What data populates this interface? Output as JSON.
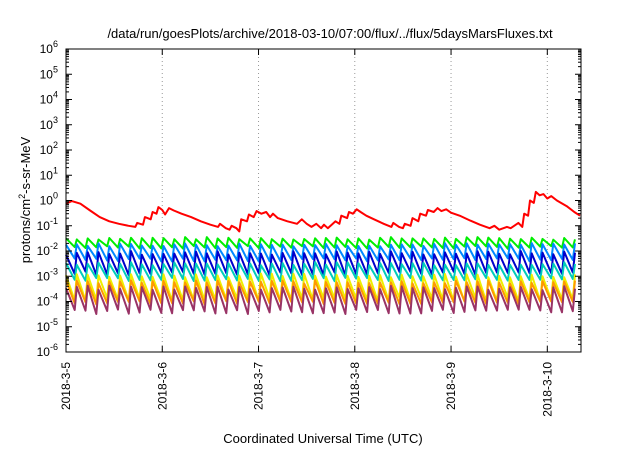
{
  "chart_data": {
    "type": "line",
    "title": "/data/run/goesPlots/archive/2018-03-10/07:00/flux/../flux/5daysMarsFluxes.txt",
    "xlabel": "Coordinated Universal Time (UTC)",
    "ylabel_parts": {
      "pre": "protons/cm",
      "sup": "2",
      "post": "-s-sr-MeV"
    },
    "y_scale": "log",
    "ylim": [
      1e-06,
      1000000.0
    ],
    "y_ticks": [
      {
        "base": "10",
        "exp": "-6",
        "value": 1e-06
      },
      {
        "base": "10",
        "exp": "-5",
        "value": 1e-05
      },
      {
        "base": "10",
        "exp": "-4",
        "value": 0.0001
      },
      {
        "base": "10",
        "exp": "-3",
        "value": 0.001
      },
      {
        "base": "10",
        "exp": "-2",
        "value": 0.01
      },
      {
        "base": "10",
        "exp": "-1",
        "value": 0.1
      },
      {
        "base": "10",
        "exp": "0",
        "value": 1
      },
      {
        "base": "10",
        "exp": "1",
        "value": 10
      },
      {
        "base": "10",
        "exp": "2",
        "value": 100
      },
      {
        "base": "10",
        "exp": "3",
        "value": 1000
      },
      {
        "base": "10",
        "exp": "4",
        "value": 10000
      },
      {
        "base": "10",
        "exp": "5",
        "value": 100000
      },
      {
        "base": "10",
        "exp": "6",
        "value": 1000000
      }
    ],
    "x_unit": "day",
    "xlim": [
      0,
      5.35
    ],
    "x_ticks": [
      {
        "label": "2018-3-5",
        "value": 0
      },
      {
        "label": "2018-3-6",
        "value": 1
      },
      {
        "label": "2018-3-7",
        "value": 2
      },
      {
        "label": "2018-3-8",
        "value": 3
      },
      {
        "label": "2018-3-9",
        "value": 4
      },
      {
        "label": "2018-3-10",
        "value": 5
      }
    ],
    "grid": "vertical-dotted",
    "series": [
      {
        "color": "#ff0000",
        "points": [
          [
            0,
            0.75
          ],
          [
            0.06,
            0.95
          ],
          [
            0.15,
            0.75
          ],
          [
            0.25,
            0.4
          ],
          [
            0.35,
            0.22
          ],
          [
            0.45,
            0.15
          ],
          [
            0.55,
            0.12
          ],
          [
            0.65,
            0.1
          ],
          [
            0.72,
            0.09
          ],
          [
            0.74,
            0.13
          ],
          [
            0.8,
            0.11
          ],
          [
            0.82,
            0.22
          ],
          [
            0.88,
            0.18
          ],
          [
            0.9,
            0.35
          ],
          [
            0.94,
            0.3
          ],
          [
            0.96,
            0.55
          ],
          [
            1.0,
            0.42
          ],
          [
            1.03,
            0.28
          ],
          [
            1.07,
            0.5
          ],
          [
            1.12,
            0.4
          ],
          [
            1.2,
            0.3
          ],
          [
            1.3,
            0.22
          ],
          [
            1.4,
            0.15
          ],
          [
            1.5,
            0.11
          ],
          [
            1.58,
            0.09
          ],
          [
            1.6,
            0.12
          ],
          [
            1.66,
            0.08
          ],
          [
            1.7,
            0.07
          ],
          [
            1.72,
            0.1
          ],
          [
            1.77,
            0.08
          ],
          [
            1.8,
            0.06
          ],
          [
            1.82,
            0.18
          ],
          [
            1.88,
            0.15
          ],
          [
            1.9,
            0.28
          ],
          [
            1.95,
            0.22
          ],
          [
            1.98,
            0.38
          ],
          [
            2.03,
            0.3
          ],
          [
            2.08,
            0.35
          ],
          [
            2.12,
            0.22
          ],
          [
            2.15,
            0.3
          ],
          [
            2.2,
            0.2
          ],
          [
            2.3,
            0.15
          ],
          [
            2.4,
            0.12
          ],
          [
            2.45,
            0.18
          ],
          [
            2.5,
            0.12
          ],
          [
            2.55,
            0.09
          ],
          [
            2.6,
            0.12
          ],
          [
            2.65,
            0.08
          ],
          [
            2.68,
            0.11
          ],
          [
            2.72,
            0.08
          ],
          [
            2.76,
            0.11
          ],
          [
            2.8,
            0.15
          ],
          [
            2.84,
            0.12
          ],
          [
            2.86,
            0.25
          ],
          [
            2.92,
            0.2
          ],
          [
            2.94,
            0.35
          ],
          [
            2.98,
            0.3
          ],
          [
            3.02,
            0.45
          ],
          [
            3.06,
            0.35
          ],
          [
            3.12,
            0.25
          ],
          [
            3.2,
            0.18
          ],
          [
            3.3,
            0.12
          ],
          [
            3.38,
            0.09
          ],
          [
            3.4,
            0.13
          ],
          [
            3.46,
            0.09
          ],
          [
            3.5,
            0.08
          ],
          [
            3.52,
            0.12
          ],
          [
            3.58,
            0.1
          ],
          [
            3.6,
            0.2
          ],
          [
            3.66,
            0.15
          ],
          [
            3.68,
            0.3
          ],
          [
            3.74,
            0.25
          ],
          [
            3.76,
            0.42
          ],
          [
            3.82,
            0.35
          ],
          [
            3.86,
            0.5
          ],
          [
            3.9,
            0.38
          ],
          [
            3.95,
            0.45
          ],
          [
            4.0,
            0.33
          ],
          [
            4.1,
            0.24
          ],
          [
            4.2,
            0.16
          ],
          [
            4.3,
            0.11
          ],
          [
            4.4,
            0.08
          ],
          [
            4.45,
            0.1
          ],
          [
            4.5,
            0.07
          ],
          [
            4.58,
            0.09
          ],
          [
            4.62,
            0.08
          ],
          [
            4.7,
            0.13
          ],
          [
            4.74,
            0.09
          ],
          [
            4.76,
            0.3
          ],
          [
            4.8,
            0.25
          ],
          [
            4.82,
            1.0
          ],
          [
            4.86,
            0.8
          ],
          [
            4.88,
            2.2
          ],
          [
            4.92,
            1.6
          ],
          [
            4.96,
            1.8
          ],
          [
            5.0,
            1.2
          ],
          [
            5.04,
            1.5
          ],
          [
            5.1,
            1.0
          ],
          [
            5.2,
            0.6
          ],
          [
            5.28,
            0.35
          ],
          [
            5.34,
            0.25
          ]
        ]
      },
      {
        "color": "#00ee00",
        "base": 0.014,
        "peak": 0.032,
        "jitter": 0.25
      },
      {
        "color": "#0088ff",
        "base": 0.0045,
        "peak": 0.018,
        "jitter": 0.3
      },
      {
        "color": "#0000cc",
        "base": 0.0013,
        "peak": 0.0085,
        "jitter": 0.35
      },
      {
        "color": "#00ccbb",
        "base": 0.00075,
        "peak": 0.0032,
        "jitter": 0.3
      },
      {
        "color": "#eeee00",
        "base": 0.00012,
        "peak": 0.0011,
        "jitter": 0.35
      },
      {
        "color": "#ff9900",
        "base": 9e-05,
        "peak": 0.0006,
        "jitter": 0.3
      },
      {
        "color": "#993366",
        "base": 4e-05,
        "peak": 0.00035,
        "jitter": 0.4
      }
    ]
  }
}
